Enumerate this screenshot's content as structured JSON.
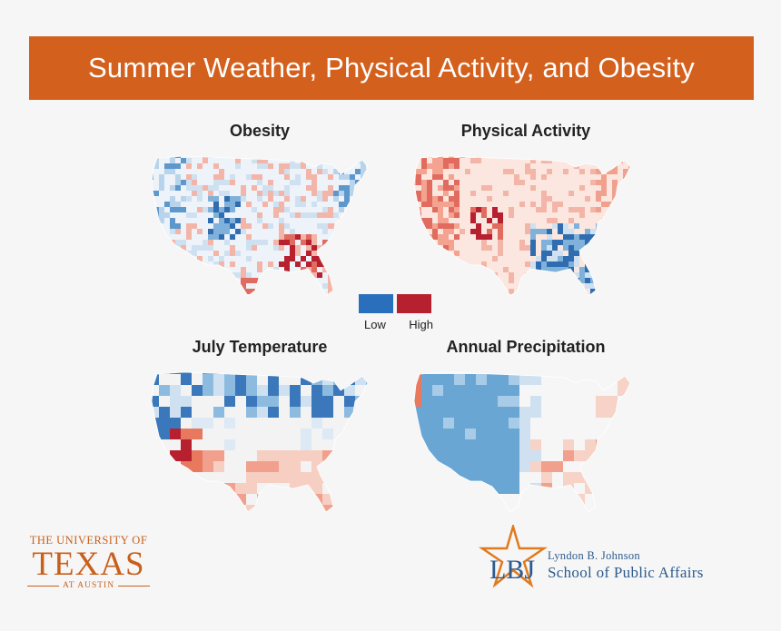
{
  "banner": {
    "title": "Summer Weather, Physical Activity, and Obesity"
  },
  "maps": [
    {
      "id": "obesity",
      "title": "Obesity",
      "base": "#eef3fa",
      "scheme": "mixed-blue-red"
    },
    {
      "id": "activity",
      "title": "Physical Activity",
      "base": "#fbe7df",
      "scheme": "red-west-blue-south"
    },
    {
      "id": "temperature",
      "title": "July Temperature",
      "base": "#f3f3f3",
      "scheme": "blue-north-salmon-south"
    },
    {
      "id": "precipitation",
      "title": "Annual Precipitation",
      "base": "#f6f6f6",
      "scheme": "blue-west-salmon-east"
    }
  ],
  "legend": {
    "low_label": "Low",
    "high_label": "High",
    "low_color": "#2a6fbb",
    "high_color": "#b7202e"
  },
  "logos": {
    "ut": {
      "line1": "THE UNIVERSITY OF",
      "line2": "TEXAS",
      "line3": "AT AUSTIN",
      "color": "#c8601c"
    },
    "lbj": {
      "mark": "LBJ",
      "line1": "Lyndon B. Johnson",
      "line2": "School of Public Affairs",
      "color": "#2e5b8e",
      "star_color": "#e07a1e"
    }
  }
}
